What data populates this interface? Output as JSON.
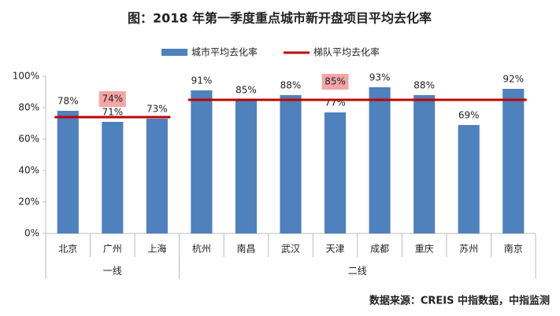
{
  "chart_data": {
    "type": "bar",
    "title": "图：2018 年第一季度重点城市新开盘项目平均去化率",
    "source": "数据来源：CREIS 中指数据，中指监测",
    "categories": [
      "北京",
      "广州",
      "上海",
      "杭州",
      "南昌",
      "武汉",
      "天津",
      "成都",
      "重庆",
      "苏州",
      "南京"
    ],
    "groups": [
      {
        "label": "一线",
        "span": 3
      },
      {
        "label": "二线",
        "span": 8
      }
    ],
    "series": [
      {
        "name": "城市平均去化率",
        "color": "#4f81bd",
        "values": [
          78,
          71,
          73,
          91,
          85,
          88,
          77,
          93,
          88,
          69,
          92
        ],
        "value_labels": [
          "78%",
          "71%",
          "73%",
          "91%",
          "85%",
          "88%",
          "77%",
          "93%",
          "88%",
          "69%",
          "92%"
        ]
      }
    ],
    "tier_line": {
      "name": "梯队平均去化率",
      "color": "#c00000",
      "values": [
        74,
        85
      ],
      "value_labels": [
        "74%",
        "85%"
      ]
    },
    "ylim": [
      0,
      100
    ],
    "yticks": [
      {
        "value": 0,
        "label": "0%"
      },
      {
        "value": 20,
        "label": "20%"
      },
      {
        "value": 40,
        "label": "40%"
      },
      {
        "value": 60,
        "label": "60%"
      },
      {
        "value": 80,
        "label": "80%"
      },
      {
        "value": 100,
        "label": "100%"
      }
    ],
    "grid": false
  }
}
